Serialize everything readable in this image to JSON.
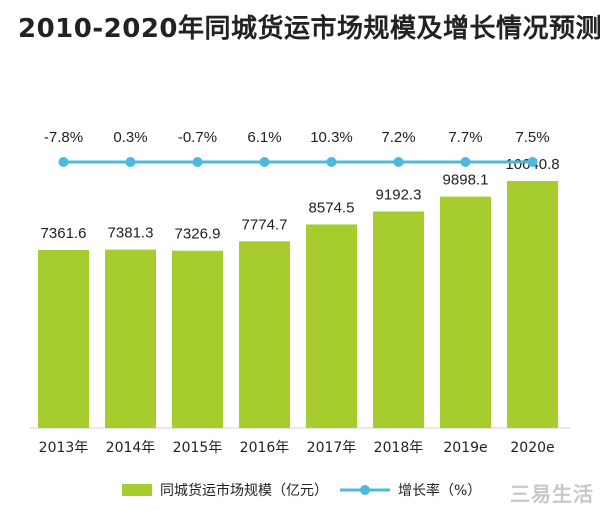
{
  "title": "2010-2020年同城货运市场规模及增长情况预测",
  "chart_data": {
    "type": "bar",
    "title": "2010-2020年同城货运市场规模及增长情况预测",
    "categories": [
      "2013年",
      "2014年",
      "2015年",
      "2016年",
      "2017年",
      "2018年",
      "2019e",
      "2020e"
    ],
    "series": [
      {
        "name": "同城货运市场规模（亿元）",
        "type": "bar",
        "values": [
          7361.6,
          7381.3,
          7326.9,
          7774.7,
          8574.5,
          9192.3,
          9898.1,
          10640.8
        ],
        "labels": [
          "7361.6",
          "7381.3",
          "7326.9",
          "7774.7",
          "8574.5",
          "9192.3",
          "9898.1",
          "10640.8"
        ],
        "color": "#a6cc2e"
      },
      {
        "name": "增长率（%）",
        "type": "line",
        "values": [
          -7.8,
          0.3,
          -0.7,
          6.1,
          10.3,
          7.2,
          7.7,
          7.5
        ],
        "labels": [
          "-7.8%",
          "0.3%",
          "-0.7%",
          "6.1%",
          "10.3%",
          "7.2%",
          "7.7%",
          "7.5%"
        ],
        "color": "#4db8e0"
      }
    ],
    "legend_position": "bottom",
    "grid": false
  },
  "watermark": "三易生活"
}
